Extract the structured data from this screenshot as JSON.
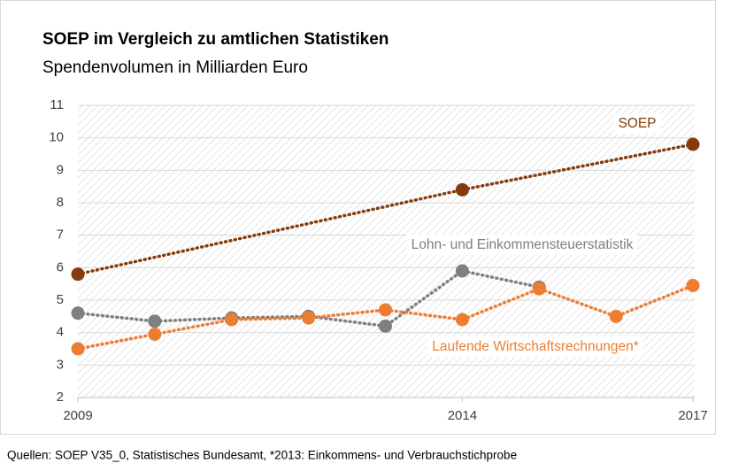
{
  "chart_data": {
    "type": "line",
    "title": "SOEP im Vergleich zu amtlichen Statistiken",
    "subtitle": "Spendenvolumen in Milliarden Euro",
    "note": "Quellen: SOEP V35_0, Statistisches Bundesamt, *2013: Einkommens- und Verbrauchstichprobe",
    "series": [
      {
        "name": "SOEP",
        "color": "#843c0c",
        "x": [
          2009,
          2014,
          2017
        ],
        "values": [
          5.8,
          8.4,
          9.8
        ]
      },
      {
        "name": "Lohn- und Einkommensteuerstatistik",
        "color": "#7f7f7f",
        "x": [
          2009,
          2010,
          2011,
          2012,
          2013,
          2014,
          2015
        ],
        "values": [
          4.6,
          4.35,
          4.45,
          4.5,
          4.2,
          5.9,
          5.4
        ]
      },
      {
        "name": "Laufende Wirtschaftsrechnungen*",
        "color": "#ed7d31",
        "x": [
          2009,
          2010,
          2011,
          2012,
          2013,
          2014,
          2015,
          2016,
          2017
        ],
        "values": [
          3.5,
          3.95,
          4.4,
          4.45,
          4.7,
          4.4,
          5.35,
          4.5,
          5.45
        ]
      }
    ],
    "xlim": [
      2009,
      2017
    ],
    "xticks": [
      2009,
      2014,
      2017
    ],
    "ylim": [
      2,
      11
    ],
    "yticks": [
      2,
      3,
      4,
      5,
      6,
      7,
      8,
      9,
      10,
      11
    ],
    "grid": true
  }
}
